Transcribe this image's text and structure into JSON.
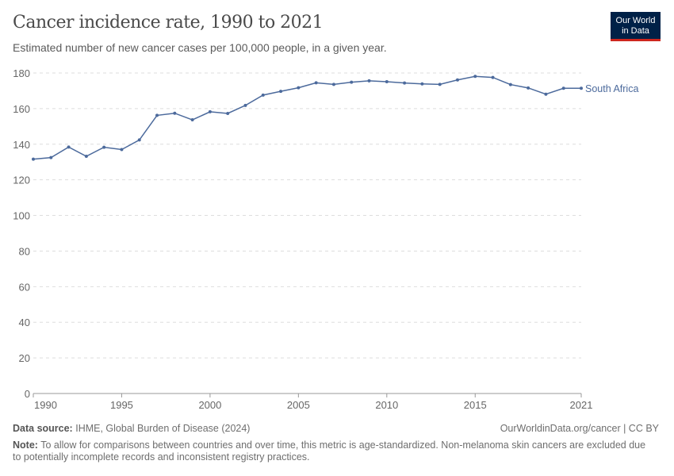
{
  "header": {
    "title": "Cancer incidence rate, 1990 to 2021",
    "subtitle": "Estimated number of new cancer cases per 100,000 people, in a given year.",
    "logo_line1": "Our World",
    "logo_line2": "in Data"
  },
  "chart_data": {
    "type": "line",
    "title": "Cancer incidence rate, 1990 to 2021",
    "x": [
      1990,
      1991,
      1992,
      1993,
      1994,
      1995,
      1996,
      1997,
      1998,
      1999,
      2000,
      2001,
      2002,
      2003,
      2004,
      2005,
      2006,
      2007,
      2008,
      2009,
      2010,
      2011,
      2012,
      2013,
      2014,
      2015,
      2016,
      2017,
      2018,
      2019,
      2020,
      2021
    ],
    "series": [
      {
        "name": "South Africa",
        "color": "#4c6a9c",
        "values": [
          131.6,
          132.5,
          138.4,
          133.2,
          138.3,
          137.0,
          142.4,
          156.2,
          157.4,
          153.7,
          158.2,
          157.3,
          161.8,
          167.6,
          169.7,
          171.7,
          174.5,
          173.6,
          174.8,
          175.6,
          175.1,
          174.4,
          173.9,
          173.6,
          176.1,
          178.1,
          177.5,
          173.5,
          171.6,
          168.1,
          171.4,
          171.4
        ]
      }
    ],
    "xlim": [
      1990,
      2021
    ],
    "ylim": [
      0,
      180
    ],
    "xticks": [
      1990,
      1995,
      2000,
      2005,
      2010,
      2015,
      2021
    ],
    "yticks": [
      0,
      20,
      40,
      60,
      80,
      100,
      120,
      140,
      160,
      180
    ],
    "grid": "horizontal dashed",
    "legend": "right, end-of-line label"
  },
  "footer": {
    "source_label": "Data source:",
    "source": "IHME, Global Burden of Disease (2024)",
    "url": "OurWorldinData.org/cancer | CC BY",
    "note_label": "Note:",
    "note": "To allow for comparisons between countries and over time, this metric is age-standardized. Non-melanoma skin cancers are excluded due to potentially incomplete records and inconsistent registry practices."
  }
}
